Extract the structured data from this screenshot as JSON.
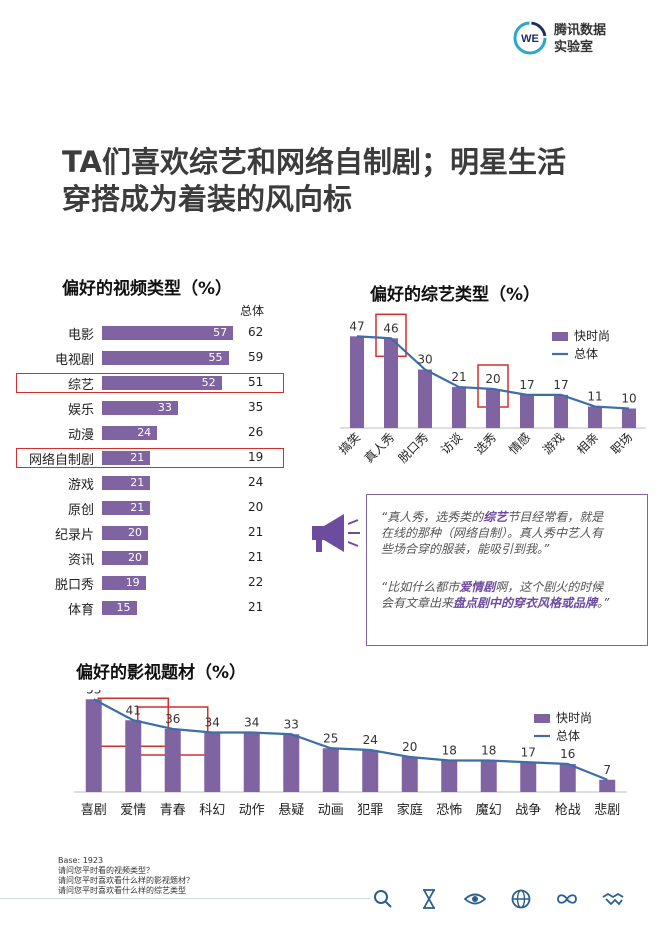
{
  "logo": {
    "badge": "WE",
    "line1": "腾讯数据",
    "line2": "实验室"
  },
  "headline": {
    "line1": "TA们喜欢综艺和网络自制剧；明星生活",
    "line2": "穿搭成为着装的风向标"
  },
  "video_section": {
    "title": "偏好的视频类型（%）",
    "total_label": "总体"
  },
  "variety_section": {
    "title": "偏好的综艺类型（%）"
  },
  "theme_section": {
    "title": "偏好的影视题材（%）"
  },
  "quote": {
    "q1_a": "“真人秀，选秀类的",
    "q1_hl": "综艺",
    "q1_b": "节目经常看，就是",
    "q1_line2": "在线的那种（网络自制）。真人秀中艺人有",
    "q1_line3": "些场合穿的服装，能吸引到我。”",
    "q2_a": "“比如什么都市",
    "q2_hl": "爱情剧",
    "q2_b": "啊，这个剧火的时候",
    "q2_line2a": "会有文章出来",
    "q2_hl2": "盘点剧中的穿衣风格或品牌",
    "q2_line2b": "。”"
  },
  "base": {
    "line1": "Base: 1923",
    "line2": "请问您平时看的视频类型？",
    "line3": "请问您平时喜欢看什么样的影视题材？",
    "line4": "请问您平时喜欢看什么样的综艺类型"
  },
  "colors": {
    "bar": "#8064a2",
    "line": "#3e6ea8",
    "highlight_box": "#d62d2d"
  },
  "footer_icons": [
    "search-icon",
    "hourglass-icon",
    "eye-icon",
    "globe-icon",
    "infinity-icon",
    "handshake-icon"
  ],
  "chart_data": [
    {
      "type": "bar",
      "orientation": "horizontal",
      "title": "偏好的视频类型（%）",
      "categories": [
        "电影",
        "电视剧",
        "综艺",
        "娱乐",
        "动漫",
        "网络自制剧",
        "游戏",
        "原创",
        "纪录片",
        "资讯",
        "脱口秀",
        "体育"
      ],
      "series": [
        {
          "name": "",
          "values": [
            57,
            55,
            52,
            33,
            24,
            21,
            21,
            21,
            20,
            20,
            19,
            15
          ]
        },
        {
          "name": "总体",
          "values": [
            62,
            59,
            51,
            35,
            26,
            19,
            24,
            20,
            21,
            21,
            22,
            21
          ]
        }
      ],
      "highlighted": [
        "综艺",
        "网络自制剧"
      ]
    },
    {
      "type": "bar",
      "title": "偏好的综艺类型（%）",
      "categories": [
        "搞笑",
        "真人秀",
        "脱口秀",
        "访谈",
        "选秀",
        "情感",
        "游戏",
        "相亲",
        "职场"
      ],
      "series": [
        {
          "name": "快时尚",
          "values": [
            47,
            46,
            30,
            21,
            20,
            17,
            17,
            11,
            10
          ]
        },
        {
          "name": "总体",
          "type": "line"
        }
      ],
      "legend": "top-right",
      "highlighted": [
        "真人秀",
        "选秀"
      ]
    },
    {
      "type": "bar",
      "title": "偏好的影视题材（%）",
      "categories": [
        "喜剧",
        "爱情",
        "青春",
        "科幻",
        "动作",
        "悬疑",
        "动画",
        "犯罪",
        "家庭",
        "恐怖",
        "魔幻",
        "战争",
        "枪战",
        "悲剧"
      ],
      "series": [
        {
          "name": "快时尚",
          "values": [
            53,
            41,
            36,
            34,
            34,
            33,
            25,
            24,
            20,
            18,
            18,
            17,
            16,
            7
          ]
        },
        {
          "name": "总体",
          "type": "line"
        }
      ],
      "legend": "top-right",
      "highlighted": [
        "爱情",
        "青春"
      ]
    }
  ]
}
